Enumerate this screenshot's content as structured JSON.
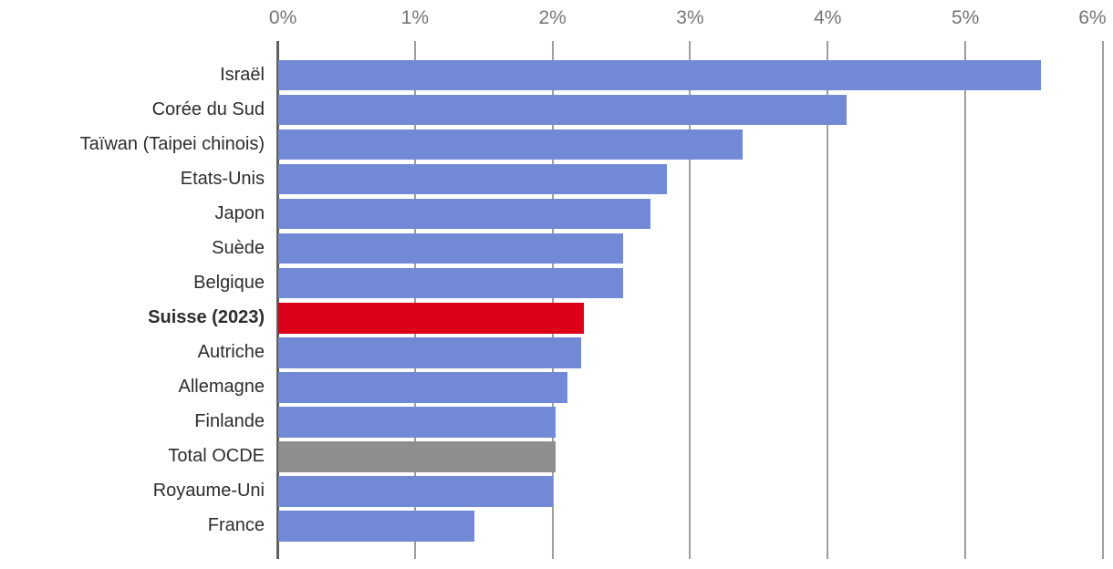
{
  "chart_data": {
    "type": "bar",
    "orientation": "horizontal",
    "title": "",
    "xlabel": "",
    "ylabel": "",
    "x_axis": {
      "position": "top",
      "min": 0,
      "max": 6,
      "tick_step": 1,
      "tick_labels": [
        "0%",
        "1%",
        "2%",
        "3%",
        "4%",
        "5%",
        "6%"
      ],
      "grid": true
    },
    "legend": "none",
    "colors": {
      "default_bar": "#7289d6",
      "highlight_bar": "#dc0019",
      "total_bar": "#8e8e8e",
      "gridline": "#9e9e9e",
      "axis_line": "#5f5f5f",
      "tick_label_text": "#757575",
      "category_label_text": "#2d2d2d",
      "background": "#ffffff"
    },
    "bars": [
      {
        "label": "Israël",
        "value": 5.55,
        "style": "default"
      },
      {
        "label": "Corée du Sud",
        "value": 4.14,
        "style": "default"
      },
      {
        "label": "Taïwan (Taipei chinois)",
        "value": 3.38,
        "style": "default"
      },
      {
        "label": "Etats-Unis",
        "value": 2.83,
        "style": "default"
      },
      {
        "label": "Japon",
        "value": 2.71,
        "style": "default"
      },
      {
        "label": "Suède",
        "value": 2.51,
        "style": "default"
      },
      {
        "label": "Belgique",
        "value": 2.51,
        "style": "default"
      },
      {
        "label": "Suisse (2023)",
        "value": 2.23,
        "style": "highlight"
      },
      {
        "label": "Autriche",
        "value": 2.21,
        "style": "default"
      },
      {
        "label": "Allemagne",
        "value": 2.11,
        "style": "default"
      },
      {
        "label": "Finlande",
        "value": 2.02,
        "style": "default"
      },
      {
        "label": "Total OCDE",
        "value": 2.02,
        "style": "total"
      },
      {
        "label": "Royaume-Uni",
        "value": 2.0,
        "style": "default"
      },
      {
        "label": "France",
        "value": 1.43,
        "style": "default"
      }
    ]
  }
}
